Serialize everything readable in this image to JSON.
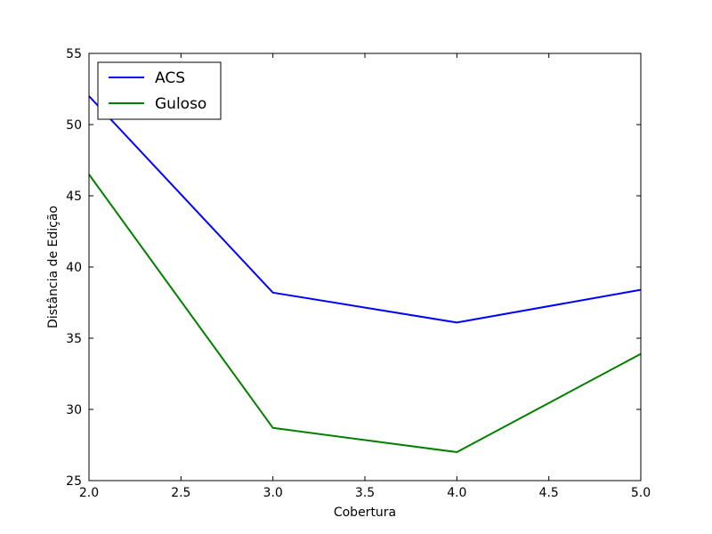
{
  "chart_data": {
    "type": "line",
    "x": [
      2.0,
      3.0,
      4.0,
      5.0
    ],
    "series": [
      {
        "name": "ACS",
        "color": "#0000ff",
        "values": [
          52.0,
          38.2,
          36.1,
          38.4
        ]
      },
      {
        "name": "Guloso",
        "color": "#008000",
        "values": [
          46.5,
          28.7,
          27.0,
          33.9
        ]
      }
    ],
    "xlabel": "Cobertura",
    "ylabel": "Distância de Edição",
    "xlim": [
      2.0,
      5.0
    ],
    "ylim": [
      25,
      55
    ],
    "xticks": [
      "2.0",
      "2.5",
      "3.0",
      "3.5",
      "4.0",
      "4.5",
      "5.0"
    ],
    "yticks": [
      "25",
      "30",
      "35",
      "40",
      "45",
      "50",
      "55"
    ],
    "grid": false,
    "legend_position": "top-left"
  }
}
